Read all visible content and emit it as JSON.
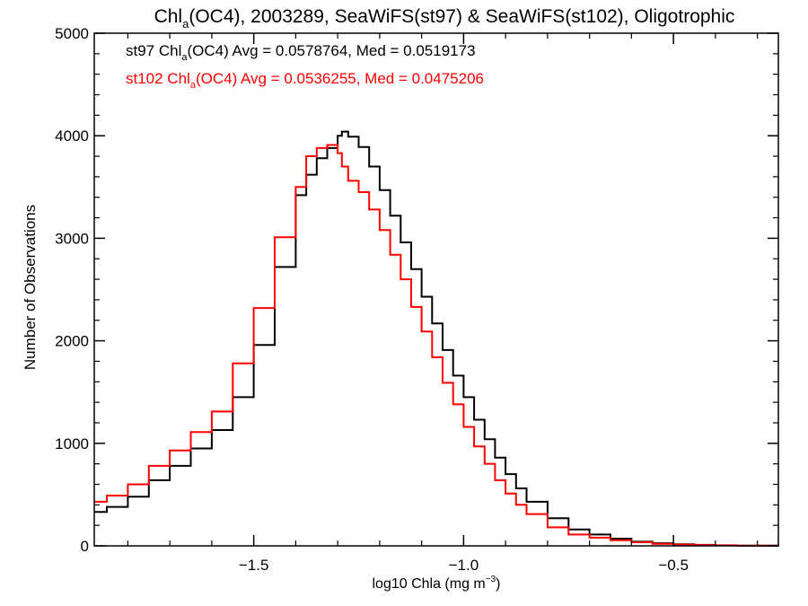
{
  "chart_data": {
    "type": "line",
    "title": {
      "pre": "Chl",
      "sub": "a",
      "post": "(OC4), 2003289, SeaWiFS(st97) & SeaWiFS(st102), Oligotrophic"
    },
    "xlabel": {
      "pre": "log10 Chla (mg m",
      "sup": "−3",
      "post": ")"
    },
    "ylabel": "Number of Observations",
    "xlim": [
      -1.88,
      -0.25
    ],
    "ylim": [
      0,
      5000
    ],
    "x_ticks": [
      -1.5,
      -1.0,
      -0.5
    ],
    "x_tick_labels": [
      "−1.5",
      "−1.0",
      "−0.5"
    ],
    "y_ticks": [
      0,
      1000,
      2000,
      3000,
      4000,
      5000
    ],
    "y_tick_labels": [
      "0",
      "1000",
      "2000",
      "3000",
      "4000",
      "5000"
    ],
    "line_style": "step",
    "annotations": [
      {
        "pre": "st97 Chl",
        "sub": "a",
        "post": "(OC4) Avg = 0.0578764, Med = 0.0519173",
        "color": "#000000"
      },
      {
        "pre": "st102 Chl",
        "sub": "a",
        "post": "(OC4) Avg = 0.0536255, Med = 0.0475206",
        "color": "#ff0000"
      }
    ],
    "x": [
      -1.88,
      -1.85,
      -1.8,
      -1.75,
      -1.7,
      -1.65,
      -1.6,
      -1.55,
      -1.5,
      -1.45,
      -1.4,
      -1.375,
      -1.35,
      -1.325,
      -1.3,
      -1.29,
      -1.275,
      -1.25,
      -1.225,
      -1.2,
      -1.175,
      -1.15,
      -1.125,
      -1.1,
      -1.075,
      -1.05,
      -1.025,
      -1.0,
      -0.975,
      -0.95,
      -0.925,
      -0.9,
      -0.875,
      -0.85,
      -0.8,
      -0.75,
      -0.7,
      -0.65,
      -0.6,
      -0.55,
      -0.5,
      -0.45,
      -0.4,
      -0.35,
      -0.3,
      -0.25
    ],
    "series": [
      {
        "name": "st97",
        "color": "#000000",
        "values": [
          330,
          380,
          480,
          640,
          780,
          950,
          1130,
          1450,
          1960,
          2720,
          3420,
          3620,
          3780,
          3880,
          4000,
          4040,
          3990,
          3890,
          3700,
          3470,
          3220,
          2960,
          2700,
          2430,
          2170,
          1910,
          1660,
          1450,
          1230,
          1040,
          860,
          700,
          560,
          430,
          270,
          160,
          110,
          70,
          40,
          25,
          15,
          10,
          5,
          3,
          2,
          1
        ]
      },
      {
        "name": "st102",
        "color": "#ff0000",
        "values": [
          430,
          490,
          600,
          780,
          930,
          1110,
          1310,
          1780,
          2320,
          3010,
          3500,
          3800,
          3880,
          3910,
          3830,
          3700,
          3560,
          3450,
          3280,
          3080,
          2840,
          2600,
          2330,
          2090,
          1840,
          1590,
          1380,
          1160,
          970,
          800,
          640,
          510,
          400,
          310,
          180,
          110,
          80,
          55,
          35,
          20,
          12,
          8,
          4,
          2,
          1,
          0
        ]
      }
    ]
  }
}
